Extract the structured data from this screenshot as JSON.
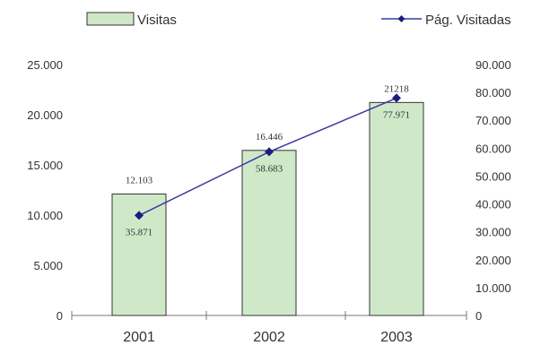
{
  "chart_data": {
    "type": "bar",
    "categories": [
      "2001",
      "2002",
      "2003"
    ],
    "series": [
      {
        "name": "Visitas",
        "type": "bar",
        "axis": "left",
        "values": [
          12103,
          16446,
          21218
        ],
        "labels": [
          "12.103",
          "16.446",
          "21218"
        ],
        "color": "#cfe9c8"
      },
      {
        "name": "Pág. Visitadas",
        "type": "line",
        "axis": "right",
        "values": [
          35871,
          58683,
          77971
        ],
        "labels": [
          "35.871",
          "58.683",
          "77.971"
        ],
        "color": "#3a3aa0"
      }
    ],
    "y_left": {
      "range": [
        0,
        25000
      ],
      "ticks": [
        "25.000",
        "20.000",
        "15.000",
        "10.000",
        "5.000",
        "0"
      ]
    },
    "y_right": {
      "range": [
        0,
        90000
      ],
      "ticks": [
        "90.000",
        "80.000",
        "70.000",
        "60.000",
        "50.000",
        "40.000",
        "30.000",
        "20.000",
        "10.000",
        "0"
      ]
    },
    "grid": false,
    "legend_position": "top"
  }
}
